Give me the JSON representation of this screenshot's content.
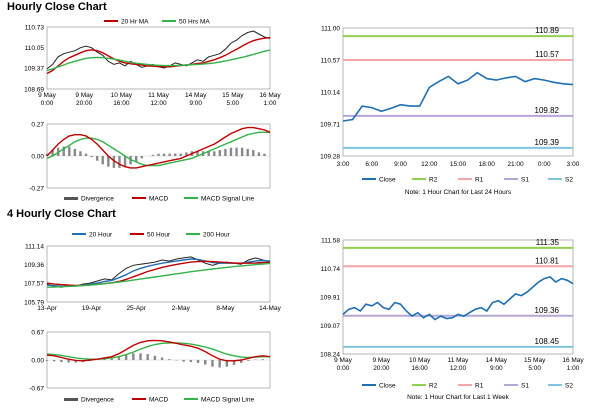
{
  "sections": [
    {
      "title": "Hourly Close Chart"
    },
    {
      "title": "4 Hourly Close Chart"
    }
  ],
  "colors": {
    "close": "#1f6fb2",
    "ma_short": "#c00000",
    "ma_long": "#33b34a",
    "ma_200": "#33b34a",
    "r2": "#92d050",
    "r1": "#f4a6a6",
    "s1": "#b4a7d6",
    "s2": "#7fc7e0",
    "divergence": "#888888",
    "macd": "#c00000",
    "signal": "#33b34a",
    "grid": "#cccccc",
    "axis": "#888888"
  },
  "chart_data": [
    {
      "id": "hourly_price",
      "type": "line",
      "title": "Hourly Close Chart",
      "ylim": [
        108.69,
        110.73
      ],
      "y_ticks": [
        "110.73",
        "110.05",
        "109.37",
        "108.69"
      ],
      "x_ticks": [
        "9 May\n0:00",
        "9 May\n20:00",
        "10 May\n16:00",
        "11 May\n12:00",
        "14 May\n9:00",
        "15 May\n5:00",
        "16 May\n1:00"
      ],
      "legend": [
        "20 Hr MA",
        "50 Hrs MA"
      ],
      "series": [
        {
          "name": "Price",
          "values": [
            109.35,
            109.5,
            109.75,
            109.85,
            109.9,
            109.95,
            110.05,
            110.1,
            110.05,
            109.9,
            109.8,
            109.6,
            109.5,
            109.55,
            109.45,
            109.6,
            109.5,
            109.4,
            109.45,
            109.5,
            109.42,
            109.38,
            109.45,
            109.55,
            109.5,
            109.45,
            109.55,
            109.65,
            109.6,
            109.75,
            109.8,
            109.85,
            110.0,
            110.2,
            110.3,
            110.45,
            110.55,
            110.6,
            110.5,
            110.4,
            110.35
          ]
        },
        {
          "name": "20 Hr MA",
          "values": [
            109.2,
            109.3,
            109.45,
            109.6,
            109.72,
            109.8,
            109.88,
            109.95,
            109.98,
            109.95,
            109.88,
            109.78,
            109.68,
            109.6,
            109.55,
            109.52,
            109.5,
            109.48,
            109.45,
            109.44,
            109.43,
            109.42,
            109.42,
            109.44,
            109.46,
            109.48,
            109.5,
            109.53,
            109.55,
            109.6,
            109.65,
            109.72,
            109.8,
            109.9,
            110.0,
            110.1,
            110.2,
            110.28,
            110.33,
            110.36,
            110.38
          ]
        },
        {
          "name": "50 Hrs MA",
          "values": [
            109.3,
            109.35,
            109.42,
            109.48,
            109.55,
            109.6,
            109.65,
            109.7,
            109.72,
            109.73,
            109.72,
            109.7,
            109.67,
            109.64,
            109.6,
            109.57,
            109.54,
            109.52,
            109.5,
            109.48,
            109.47,
            109.46,
            109.46,
            109.46,
            109.47,
            109.48,
            109.49,
            109.5,
            109.51,
            109.53,
            109.55,
            109.58,
            109.61,
            109.65,
            109.69,
            109.73,
            109.78,
            109.83,
            109.88,
            109.93,
            109.97
          ]
        }
      ]
    },
    {
      "id": "hourly_macd",
      "type": "line",
      "ylim": [
        -0.27,
        0.27
      ],
      "y_ticks": [
        "0.27",
        "0.00",
        "-0.27"
      ],
      "legend": [
        "Divergence",
        "MACD",
        "MACD Signal Line"
      ],
      "series": [
        {
          "name": "MACD",
          "values": [
            0.0,
            0.05,
            0.1,
            0.14,
            0.17,
            0.18,
            0.18,
            0.17,
            0.14,
            0.1,
            0.05,
            0.0,
            -0.04,
            -0.07,
            -0.09,
            -0.1,
            -0.1,
            -0.09,
            -0.08,
            -0.07,
            -0.06,
            -0.05,
            -0.04,
            -0.03,
            -0.02,
            0.0,
            0.02,
            0.04,
            0.06,
            0.08,
            0.1,
            0.13,
            0.16,
            0.19,
            0.21,
            0.23,
            0.24,
            0.24,
            0.23,
            0.22,
            0.2
          ]
        },
        {
          "name": "MACD Signal Line",
          "values": [
            -0.02,
            0.0,
            0.03,
            0.06,
            0.09,
            0.12,
            0.14,
            0.15,
            0.15,
            0.14,
            0.12,
            0.09,
            0.06,
            0.03,
            0.0,
            -0.03,
            -0.05,
            -0.07,
            -0.08,
            -0.08,
            -0.08,
            -0.07,
            -0.06,
            -0.05,
            -0.04,
            -0.03,
            -0.02,
            0.0,
            0.02,
            0.04,
            0.06,
            0.08,
            0.1,
            0.12,
            0.14,
            0.16,
            0.18,
            0.19,
            0.2,
            0.2,
            0.2
          ]
        },
        {
          "name": "Divergence",
          "values": [
            0.02,
            0.05,
            0.07,
            0.08,
            0.08,
            0.06,
            0.04,
            0.02,
            -0.01,
            -0.04,
            -0.07,
            -0.09,
            -0.1,
            -0.1,
            -0.09,
            -0.07,
            -0.05,
            -0.02,
            0.0,
            0.01,
            0.02,
            0.02,
            0.02,
            0.02,
            0.02,
            0.03,
            0.04,
            0.04,
            0.04,
            0.04,
            0.04,
            0.05,
            0.06,
            0.07,
            0.07,
            0.07,
            0.06,
            0.05,
            0.03,
            0.02,
            0.0
          ]
        }
      ]
    },
    {
      "id": "hourly_levels",
      "type": "line",
      "ylim": [
        109.28,
        111.0
      ],
      "y_ticks": [
        "111.00",
        "110.57",
        "110.14",
        "109.71",
        "109.28"
      ],
      "x_ticks": [
        "3:00",
        "6:00",
        "9:00",
        "12:00",
        "15:00",
        "18:00",
        "21:00",
        "0:00",
        "3:00"
      ],
      "legend": [
        "Close",
        "R2",
        "R1",
        "S1",
        "S2"
      ],
      "note": "Note: 1 Hour Chart for Last 24 Hours",
      "levels": [
        {
          "name": "R2",
          "value": 110.89,
          "label": "110.89"
        },
        {
          "name": "R1",
          "value": 110.57,
          "label": "110.57"
        },
        {
          "name": "S1",
          "value": 109.82,
          "label": "109.82"
        },
        {
          "name": "S2",
          "value": 109.39,
          "label": "109.39"
        }
      ],
      "series": [
        {
          "name": "Close",
          "values": [
            109.75,
            109.77,
            109.95,
            109.93,
            109.88,
            109.92,
            109.97,
            109.95,
            109.95,
            110.2,
            110.28,
            110.35,
            110.25,
            110.3,
            110.4,
            110.32,
            110.3,
            110.33,
            110.35,
            110.28,
            110.32,
            110.3,
            110.27,
            110.25,
            110.24
          ]
        }
      ]
    },
    {
      "id": "4h_price",
      "type": "line",
      "title": "4 Hourly Close Chart",
      "ylim": [
        105.79,
        111.14
      ],
      "y_ticks": [
        "111.14",
        "109.36",
        "107.57",
        "105.79"
      ],
      "x_ticks": [
        "13-Apr",
        "19-Apr",
        "25-Apr",
        "2-May",
        "8-May",
        "14-May"
      ],
      "legend": [
        "20 Hour",
        "50 Hour",
        "200 Hour"
      ],
      "series": [
        {
          "name": "Price",
          "values": [
            107.5,
            107.3,
            107.2,
            107.4,
            107.3,
            107.5,
            107.6,
            107.8,
            108.0,
            107.9,
            108.5,
            109.0,
            109.3,
            109.4,
            109.5,
            109.6,
            109.8,
            109.7,
            109.9,
            110.0,
            110.1,
            109.8,
            109.5,
            109.3,
            109.5,
            109.6,
            109.5,
            109.4,
            109.8,
            110.0,
            109.8,
            109.6
          ]
        },
        {
          "name": "20 Hour",
          "values": [
            107.4,
            107.35,
            107.3,
            107.3,
            107.35,
            107.4,
            107.5,
            107.6,
            107.75,
            107.85,
            108.1,
            108.4,
            108.75,
            109.0,
            109.2,
            109.35,
            109.5,
            109.6,
            109.7,
            109.8,
            109.9,
            109.85,
            109.7,
            109.55,
            109.5,
            109.5,
            109.5,
            109.5,
            109.6,
            109.7,
            109.75,
            109.7
          ]
        },
        {
          "name": "50 Hour",
          "values": [
            107.6,
            107.5,
            107.45,
            107.4,
            107.38,
            107.38,
            107.42,
            107.48,
            107.55,
            107.62,
            107.75,
            107.95,
            108.2,
            108.45,
            108.7,
            108.9,
            109.1,
            109.25,
            109.38,
            109.5,
            109.6,
            109.65,
            109.68,
            109.65,
            109.6,
            109.55,
            109.52,
            109.5,
            109.5,
            109.52,
            109.55,
            109.58
          ]
        },
        {
          "name": "200 Hour",
          "values": [
            107.2,
            107.22,
            107.25,
            107.28,
            107.32,
            107.36,
            107.41,
            107.47,
            107.54,
            107.61,
            107.69,
            107.78,
            107.88,
            107.98,
            108.08,
            108.18,
            108.28,
            108.38,
            108.48,
            108.58,
            108.68,
            108.77,
            108.86,
            108.94,
            109.02,
            109.1,
            109.17,
            109.24,
            109.3,
            109.36,
            109.42,
            109.48
          ]
        }
      ]
    },
    {
      "id": "4h_macd",
      "type": "line",
      "ylim": [
        -0.67,
        0.67
      ],
      "y_ticks": [
        "0.67",
        "0.00",
        "-0.67"
      ],
      "legend": [
        "Divergence",
        "MACD",
        "MACD Signal Line"
      ],
      "series": [
        {
          "name": "MACD",
          "values": [
            0.12,
            0.1,
            0.06,
            0.02,
            -0.01,
            -0.02,
            0.0,
            0.02,
            0.05,
            0.08,
            0.15,
            0.25,
            0.35,
            0.42,
            0.46,
            0.47,
            0.46,
            0.43,
            0.4,
            0.36,
            0.33,
            0.28,
            0.2,
            0.1,
            0.02,
            -0.02,
            -0.02,
            0.0,
            0.04,
            0.08,
            0.1,
            0.08
          ]
        },
        {
          "name": "MACD Signal Line",
          "values": [
            0.14,
            0.13,
            0.11,
            0.08,
            0.05,
            0.03,
            0.02,
            0.02,
            0.03,
            0.05,
            0.08,
            0.13,
            0.19,
            0.26,
            0.32,
            0.37,
            0.4,
            0.41,
            0.41,
            0.4,
            0.38,
            0.35,
            0.31,
            0.26,
            0.2,
            0.14,
            0.1,
            0.07,
            0.06,
            0.07,
            0.08,
            0.08
          ]
        },
        {
          "name": "Divergence",
          "values": [
            -0.02,
            -0.03,
            -0.05,
            -0.06,
            -0.06,
            -0.05,
            -0.02,
            0.0,
            0.02,
            0.03,
            0.07,
            0.12,
            0.16,
            0.16,
            0.14,
            0.1,
            0.06,
            0.02,
            -0.01,
            -0.04,
            -0.05,
            -0.07,
            -0.11,
            -0.16,
            -0.18,
            -0.16,
            -0.12,
            -0.07,
            -0.02,
            0.01,
            0.02,
            0.0
          ]
        }
      ]
    },
    {
      "id": "4h_levels",
      "type": "line",
      "ylim": [
        108.24,
        111.58
      ],
      "y_ticks": [
        "111.58",
        "110.74",
        "109.91",
        "109.07",
        "108.24"
      ],
      "x_ticks": [
        "9 May\n0:00",
        "9 May\n20:00",
        "10 May\n16:00",
        "11 May\n12:00",
        "14 May\n9:00",
        "15 May\n5:00",
        "16 May\n1:00"
      ],
      "legend": [
        "Close",
        "R2",
        "R1",
        "S1",
        "S2"
      ],
      "note": "Note: 1 Hour Chart for Last 1 Week",
      "levels": [
        {
          "name": "R2",
          "value": 111.35,
          "label": "111.35"
        },
        {
          "name": "R1",
          "value": 110.81,
          "label": "110.81"
        },
        {
          "name": "S1",
          "value": 109.36,
          "label": "109.36"
        },
        {
          "name": "S2",
          "value": 108.45,
          "label": "108.45"
        }
      ],
      "series": [
        {
          "name": "Close",
          "values": [
            109.4,
            109.55,
            109.6,
            109.5,
            109.7,
            109.65,
            109.75,
            109.6,
            109.55,
            109.75,
            109.7,
            109.5,
            109.35,
            109.45,
            109.3,
            109.4,
            109.25,
            109.35,
            109.28,
            109.3,
            109.4,
            109.35,
            109.45,
            109.55,
            109.6,
            109.5,
            109.75,
            109.8,
            109.7,
            109.85,
            110.0,
            109.95,
            110.05,
            110.2,
            110.35,
            110.45,
            110.5,
            110.35,
            110.45,
            110.4,
            110.3
          ]
        }
      ]
    }
  ]
}
